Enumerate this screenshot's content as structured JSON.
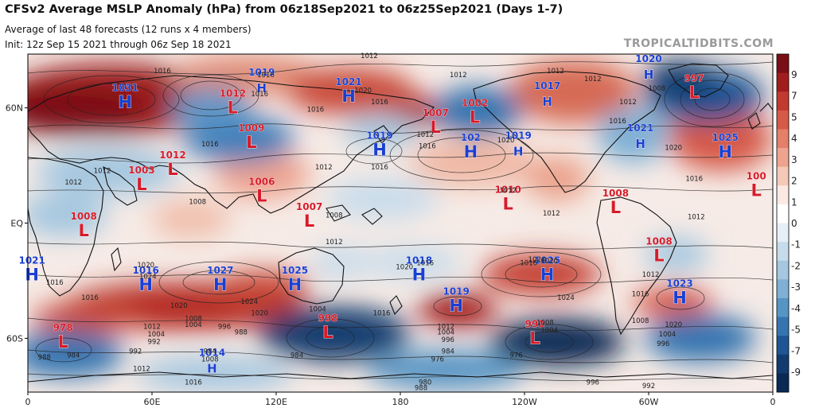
{
  "header": {
    "title": "CFSv2 Average MSLP Anomaly (hPa) from 06z18Sep2021 to 06z25Sep2021 (Days 1-7)",
    "subtitle1": "Average of last 48 forecasts (12 runs x 4 members)",
    "subtitle2": "Init: 12z Sep 15 2021 through 06z Sep 18 2021",
    "credit": "TROPICALTIDBITS.COM"
  },
  "axes": {
    "x_ticks": [
      {
        "lon": 0,
        "label": "0"
      },
      {
        "lon": 60,
        "label": "60E"
      },
      {
        "lon": 120,
        "label": "120E"
      },
      {
        "lon": 180,
        "label": "180"
      },
      {
        "lon": 240,
        "label": "120W"
      },
      {
        "lon": 300,
        "label": "60W"
      },
      {
        "lon": 360,
        "label": "0"
      }
    ],
    "y_ticks": [
      {
        "lat": 60,
        "label": "60N"
      },
      {
        "lat": 0,
        "label": "EQ"
      },
      {
        "lat": -60,
        "label": "60S"
      }
    ],
    "lat_range": [
      -88,
      88
    ],
    "lon_range": [
      0,
      360
    ]
  },
  "colorbar": {
    "labels": [
      "9",
      "7",
      "5",
      "4",
      "3",
      "2",
      "1",
      "0",
      "-1",
      "-2",
      "-3",
      "-4",
      "-5",
      "-7",
      "-9"
    ],
    "colors": [
      "#7a0f16",
      "#a11d1d",
      "#c23a2f",
      "#d65a48",
      "#e47f69",
      "#eea38f",
      "#f5c8b8",
      "#fbe9e2",
      "#ffffff",
      "#e6eff6",
      "#c7dceb",
      "#a5c7e0",
      "#7fb0d5",
      "#5694c4",
      "#3674b0",
      "#1f5594",
      "#123c70",
      "#0a2a55"
    ]
  },
  "pressure_centers": [
    {
      "type": "H",
      "value": "1031",
      "lon": 47,
      "lat": 63,
      "size": "big"
    },
    {
      "type": "L",
      "value": "1012",
      "lon": 99,
      "lat": 60,
      "size": "big"
    },
    {
      "type": "H",
      "value": "1019",
      "lon": 113,
      "lat": 71,
      "size": "small"
    },
    {
      "type": "H",
      "value": "1021",
      "lon": 155,
      "lat": 66,
      "size": "big"
    },
    {
      "type": "L",
      "value": "1009",
      "lon": 108,
      "lat": 42,
      "size": "big"
    },
    {
      "type": "L",
      "value": "1007",
      "lon": 197,
      "lat": 50,
      "size": "big"
    },
    {
      "type": "L",
      "value": "1002",
      "lon": 216,
      "lat": 55,
      "size": "big"
    },
    {
      "type": "H",
      "value": "1019",
      "lon": 170,
      "lat": 38,
      "size": "big"
    },
    {
      "type": "H",
      "value": "102",
      "lon": 214,
      "lat": 37,
      "size": "big"
    },
    {
      "type": "H",
      "value": "1019",
      "lon": 237,
      "lat": 38,
      "size": "small"
    },
    {
      "type": "H",
      "value": "1017",
      "lon": 251,
      "lat": 64,
      "size": "small"
    },
    {
      "type": "H",
      "value": "1020",
      "lon": 300,
      "lat": 78,
      "size": "small"
    },
    {
      "type": "L",
      "value": "997",
      "lon": 322,
      "lat": 68,
      "size": "big"
    },
    {
      "type": "H",
      "value": "1025",
      "lon": 337,
      "lat": 37,
      "size": "big"
    },
    {
      "type": "H",
      "value": "1021",
      "lon": 296,
      "lat": 42,
      "size": "small"
    },
    {
      "type": "L",
      "value": "1012",
      "lon": 70,
      "lat": 28,
      "size": "big"
    },
    {
      "type": "L",
      "value": "1003",
      "lon": 55,
      "lat": 20,
      "size": "big"
    },
    {
      "type": "L",
      "value": "1006",
      "lon": 113,
      "lat": 14,
      "size": "big"
    },
    {
      "type": "L",
      "value": "1007",
      "lon": 136,
      "lat": 1,
      "size": "big"
    },
    {
      "type": "L",
      "value": "1010",
      "lon": 232,
      "lat": 10,
      "size": "big"
    },
    {
      "type": "L",
      "value": "1008",
      "lon": 284,
      "lat": 8,
      "size": "big"
    },
    {
      "type": "L",
      "value": "1008",
      "lon": 27,
      "lat": -4,
      "size": "big"
    },
    {
      "type": "L",
      "value": "1008",
      "lon": 305,
      "lat": -17,
      "size": "big"
    },
    {
      "type": "L",
      "value": "100",
      "lon": 352,
      "lat": 17,
      "size": "big"
    },
    {
      "type": "H",
      "value": "1021",
      "lon": 2,
      "lat": -27,
      "size": "big"
    },
    {
      "type": "H",
      "value": "1016",
      "lon": 57,
      "lat": -32,
      "size": "big"
    },
    {
      "type": "H",
      "value": "1027",
      "lon": 93,
      "lat": -32,
      "size": "big"
    },
    {
      "type": "H",
      "value": "1025",
      "lon": 129,
      "lat": -32,
      "size": "big"
    },
    {
      "type": "H",
      "value": "1018",
      "lon": 189,
      "lat": -27,
      "size": "big"
    },
    {
      "type": "H",
      "value": "1025",
      "lon": 251,
      "lat": -27,
      "size": "big"
    },
    {
      "type": "H",
      "value": "1023",
      "lon": 315,
      "lat": -39,
      "size": "big"
    },
    {
      "type": "H",
      "value": "1019",
      "lon": 207,
      "lat": -43,
      "size": "big"
    },
    {
      "type": "L",
      "value": "998",
      "lon": 145,
      "lat": -57,
      "size": "big"
    },
    {
      "type": "L",
      "value": "990",
      "lon": 245,
      "lat": -60,
      "size": "big"
    },
    {
      "type": "H",
      "value": "1014",
      "lon": 89,
      "lat": -75,
      "size": "small"
    },
    {
      "type": "L",
      "value": "978",
      "lon": 17,
      "lat": -62,
      "size": "big"
    }
  ],
  "contour_labels": [
    {
      "t": "1012",
      "lon": 165,
      "lat": 86
    },
    {
      "t": "1016",
      "lon": 65,
      "lat": 78
    },
    {
      "t": "1016",
      "lon": 115,
      "lat": 76
    },
    {
      "t": "1012",
      "lon": 208,
      "lat": 76
    },
    {
      "t": "1020",
      "lon": 162,
      "lat": 68
    },
    {
      "t": "1016",
      "lon": 170,
      "lat": 62
    },
    {
      "t": "1016",
      "lon": 139,
      "lat": 58
    },
    {
      "t": "1016",
      "lon": 112,
      "lat": 66
    },
    {
      "t": "1012",
      "lon": 192,
      "lat": 45
    },
    {
      "t": "1016",
      "lon": 193,
      "lat": 39
    },
    {
      "t": "1012",
      "lon": 143,
      "lat": 28
    },
    {
      "t": "1016",
      "lon": 170,
      "lat": 28
    },
    {
      "t": "1020",
      "lon": 231,
      "lat": 42
    },
    {
      "t": "1012",
      "lon": 255,
      "lat": 78
    },
    {
      "t": "1012",
      "lon": 273,
      "lat": 74
    },
    {
      "t": "1008",
      "lon": 304,
      "lat": 69
    },
    {
      "t": "1012",
      "lon": 290,
      "lat": 62
    },
    {
      "t": "1016",
      "lon": 285,
      "lat": 52
    },
    {
      "t": "1020",
      "lon": 312,
      "lat": 38
    },
    {
      "t": "1016",
      "lon": 322,
      "lat": 22
    },
    {
      "t": "1012",
      "lon": 232,
      "lat": 16
    },
    {
      "t": "1012",
      "lon": 253,
      "lat": 4
    },
    {
      "t": "1012",
      "lon": 323,
      "lat": 2
    },
    {
      "t": "1012",
      "lon": 36,
      "lat": 26
    },
    {
      "t": "1012",
      "lon": 22,
      "lat": 20
    },
    {
      "t": "1016",
      "lon": 88,
      "lat": 40
    },
    {
      "t": "1008",
      "lon": 82,
      "lat": 10
    },
    {
      "t": "1008",
      "lon": 148,
      "lat": 3
    },
    {
      "t": "1012",
      "lon": 148,
      "lat": -11
    },
    {
      "t": "1016",
      "lon": 192,
      "lat": -22
    },
    {
      "t": "1020",
      "lon": 57,
      "lat": -23
    },
    {
      "t": "1024",
      "lon": 58,
      "lat": -29
    },
    {
      "t": "1016",
      "lon": 30,
      "lat": -40
    },
    {
      "t": "1016",
      "lon": 13,
      "lat": -32
    },
    {
      "t": "1020",
      "lon": 73,
      "lat": -44
    },
    {
      "t": "1024",
      "lon": 107,
      "lat": -42
    },
    {
      "t": "1020",
      "lon": 112,
      "lat": -48
    },
    {
      "t": "1004",
      "lon": 140,
      "lat": -46
    },
    {
      "t": "1008",
      "lon": 80,
      "lat": -51
    },
    {
      "t": "1004",
      "lon": 80,
      "lat": -54
    },
    {
      "t": "996",
      "lon": 95,
      "lat": -55
    },
    {
      "t": "988",
      "lon": 103,
      "lat": -58
    },
    {
      "t": "1012",
      "lon": 60,
      "lat": -55
    },
    {
      "t": "1004",
      "lon": 62,
      "lat": -59
    },
    {
      "t": "992",
      "lon": 61,
      "lat": -63
    },
    {
      "t": "1016",
      "lon": 171,
      "lat": -48
    },
    {
      "t": "1012",
      "lon": 202,
      "lat": -55
    },
    {
      "t": "1004",
      "lon": 202,
      "lat": -58
    },
    {
      "t": "996",
      "lon": 203,
      "lat": -62
    },
    {
      "t": "984",
      "lon": 203,
      "lat": -68
    },
    {
      "t": "976",
      "lon": 198,
      "lat": -72
    },
    {
      "t": "1016",
      "lon": 242,
      "lat": -22
    },
    {
      "t": "1020",
      "lon": 252,
      "lat": -21
    },
    {
      "t": "1024",
      "lon": 260,
      "lat": -40
    },
    {
      "t": "1008",
      "lon": 250,
      "lat": -53
    },
    {
      "t": "1004",
      "lon": 252,
      "lat": -57
    },
    {
      "t": "976",
      "lon": 236,
      "lat": -70
    },
    {
      "t": "1012",
      "lon": 301,
      "lat": -28
    },
    {
      "t": "1016",
      "lon": 296,
      "lat": -38
    },
    {
      "t": "1008",
      "lon": 296,
      "lat": -52
    },
    {
      "t": "1004",
      "lon": 309,
      "lat": -59
    },
    {
      "t": "996",
      "lon": 307,
      "lat": -64
    },
    {
      "t": "1020",
      "lon": 312,
      "lat": -54
    },
    {
      "t": "984",
      "lon": 130,
      "lat": -70
    },
    {
      "t": "984",
      "lon": 88,
      "lat": -68
    },
    {
      "t": "1008",
      "lon": 88,
      "lat": -72
    },
    {
      "t": "1012",
      "lon": 55,
      "lat": -77
    },
    {
      "t": "1016",
      "lon": 80,
      "lat": -84
    },
    {
      "t": "992",
      "lon": 52,
      "lat": -68
    },
    {
      "t": "984",
      "lon": 22,
      "lat": -70
    },
    {
      "t": "988",
      "lon": 8,
      "lat": -71
    },
    {
      "t": "980",
      "lon": 192,
      "lat": -84
    },
    {
      "t": "988",
      "lon": 190,
      "lat": -87
    },
    {
      "t": "996",
      "lon": 273,
      "lat": -84
    },
    {
      "t": "992",
      "lon": 300,
      "lat": -86
    },
    {
      "t": "1020",
      "lon": 182,
      "lat": -24
    },
    {
      "t": "1024",
      "lon": 246,
      "lat": -20
    }
  ]
}
